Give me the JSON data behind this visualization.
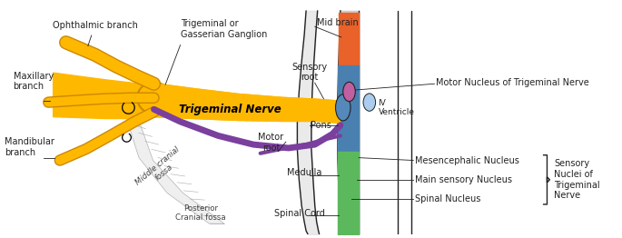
{
  "bg_color": "#ffffff",
  "yellow": "#FFB800",
  "yellow_dark": "#CC8800",
  "purple": "#7B3F9E",
  "orange": "#E8622A",
  "blue": "#4A80B0",
  "green": "#5CB85C",
  "pink": "#C060A0",
  "dark": "#222222",
  "gray_bs": "#CCCCCC",
  "gray_skull": "#DDDDDD",
  "label_fs": 7.0,
  "bold_label_fs": 8.5,
  "labels": {
    "ophthalmic_branch": "Ophthalmic branch",
    "maxillary_branch": "Maxillary\nbranch",
    "mandibular_branch": "Mandibular\nbranch",
    "trigeminal_ganglion": "Trigeminal or\nGasserian Ganglion",
    "trigeminal_nerve": "Trigeminal Nerve",
    "middle_cranial_fossa": "Middle cranial\nfossa",
    "posterior_cranial_fossa": "Posterior\nCranial fossa",
    "mid_brain": "Mid brain",
    "sensory_root": "Sensory\nroot",
    "motor_root": "Motor\nroot",
    "pons": "Pons",
    "medulla": "Medulla",
    "spinal_cord": "Spinal Cord",
    "motor_nucleus": "Motor Nucleus of Trigeminal Nerve",
    "iv_ventricle": "IV\nVentricle",
    "mesencephalic_nucleus": "Mesencephalic Nucleus",
    "main_sensory_nucleus": "Main sensory Nucleus",
    "spinal_nucleus": "Spinal Nucleus",
    "sensory_nuclei": "Sensory\nNuclei of\nTrigeminal\nNerve"
  }
}
